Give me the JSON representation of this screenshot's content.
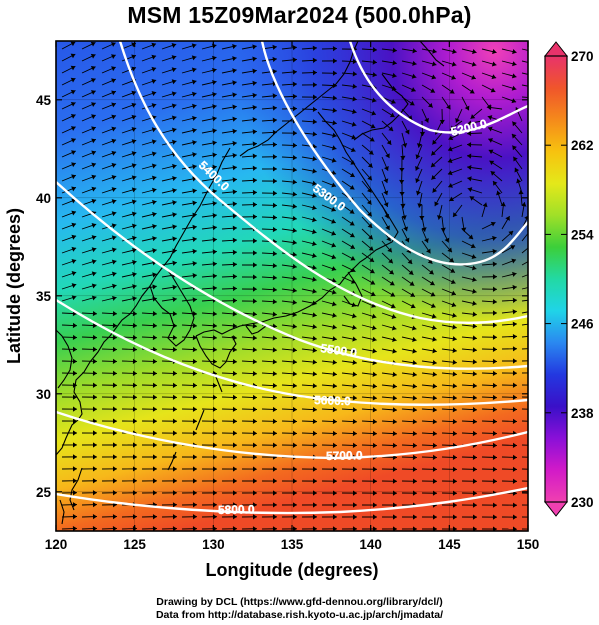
{
  "title": "MSM 15Z09Mar2024 (500.0hPa)",
  "credits": {
    "drawing": "Drawing by DCL (https://www.gfd-dennou.org/library/dcl/)",
    "data": "Data from http://database.rish.kyoto-u.ac.jp/arch/jmadata/"
  },
  "axes": {
    "x_label": "Longitude (degrees)",
    "y_label": "Latitude  (degrees)",
    "x_ticks": [
      "120",
      "125",
      "130",
      "135",
      "140",
      "145",
      "150"
    ],
    "y_ticks": [
      "25",
      "30",
      "35",
      "40",
      "45"
    ],
    "x_range": [
      120,
      150
    ],
    "y_range": [
      23,
      48
    ]
  },
  "colorbar": {
    "range": [
      230,
      270
    ],
    "tick_labels": [
      "270",
      "262",
      "254",
      "246",
      "238",
      "230"
    ],
    "colors": [
      "#e8336b",
      "#f0552b",
      "#f58a1b",
      "#f7c20f",
      "#e4e81a",
      "#a0e028",
      "#3ccf3a",
      "#22d9a4",
      "#20d4e8",
      "#2a88f0",
      "#2338e0",
      "#3a10c8",
      "#8a10d8",
      "#d21ac8",
      "#f040b0"
    ]
  },
  "contours": [
    {
      "label": "5200.0"
    },
    {
      "label": "5300.0"
    },
    {
      "label": "5400.0"
    },
    {
      "label": "5500.0"
    },
    {
      "label": "5600.0"
    },
    {
      "label": "5700.0"
    },
    {
      "label": "5800.0"
    }
  ]
}
